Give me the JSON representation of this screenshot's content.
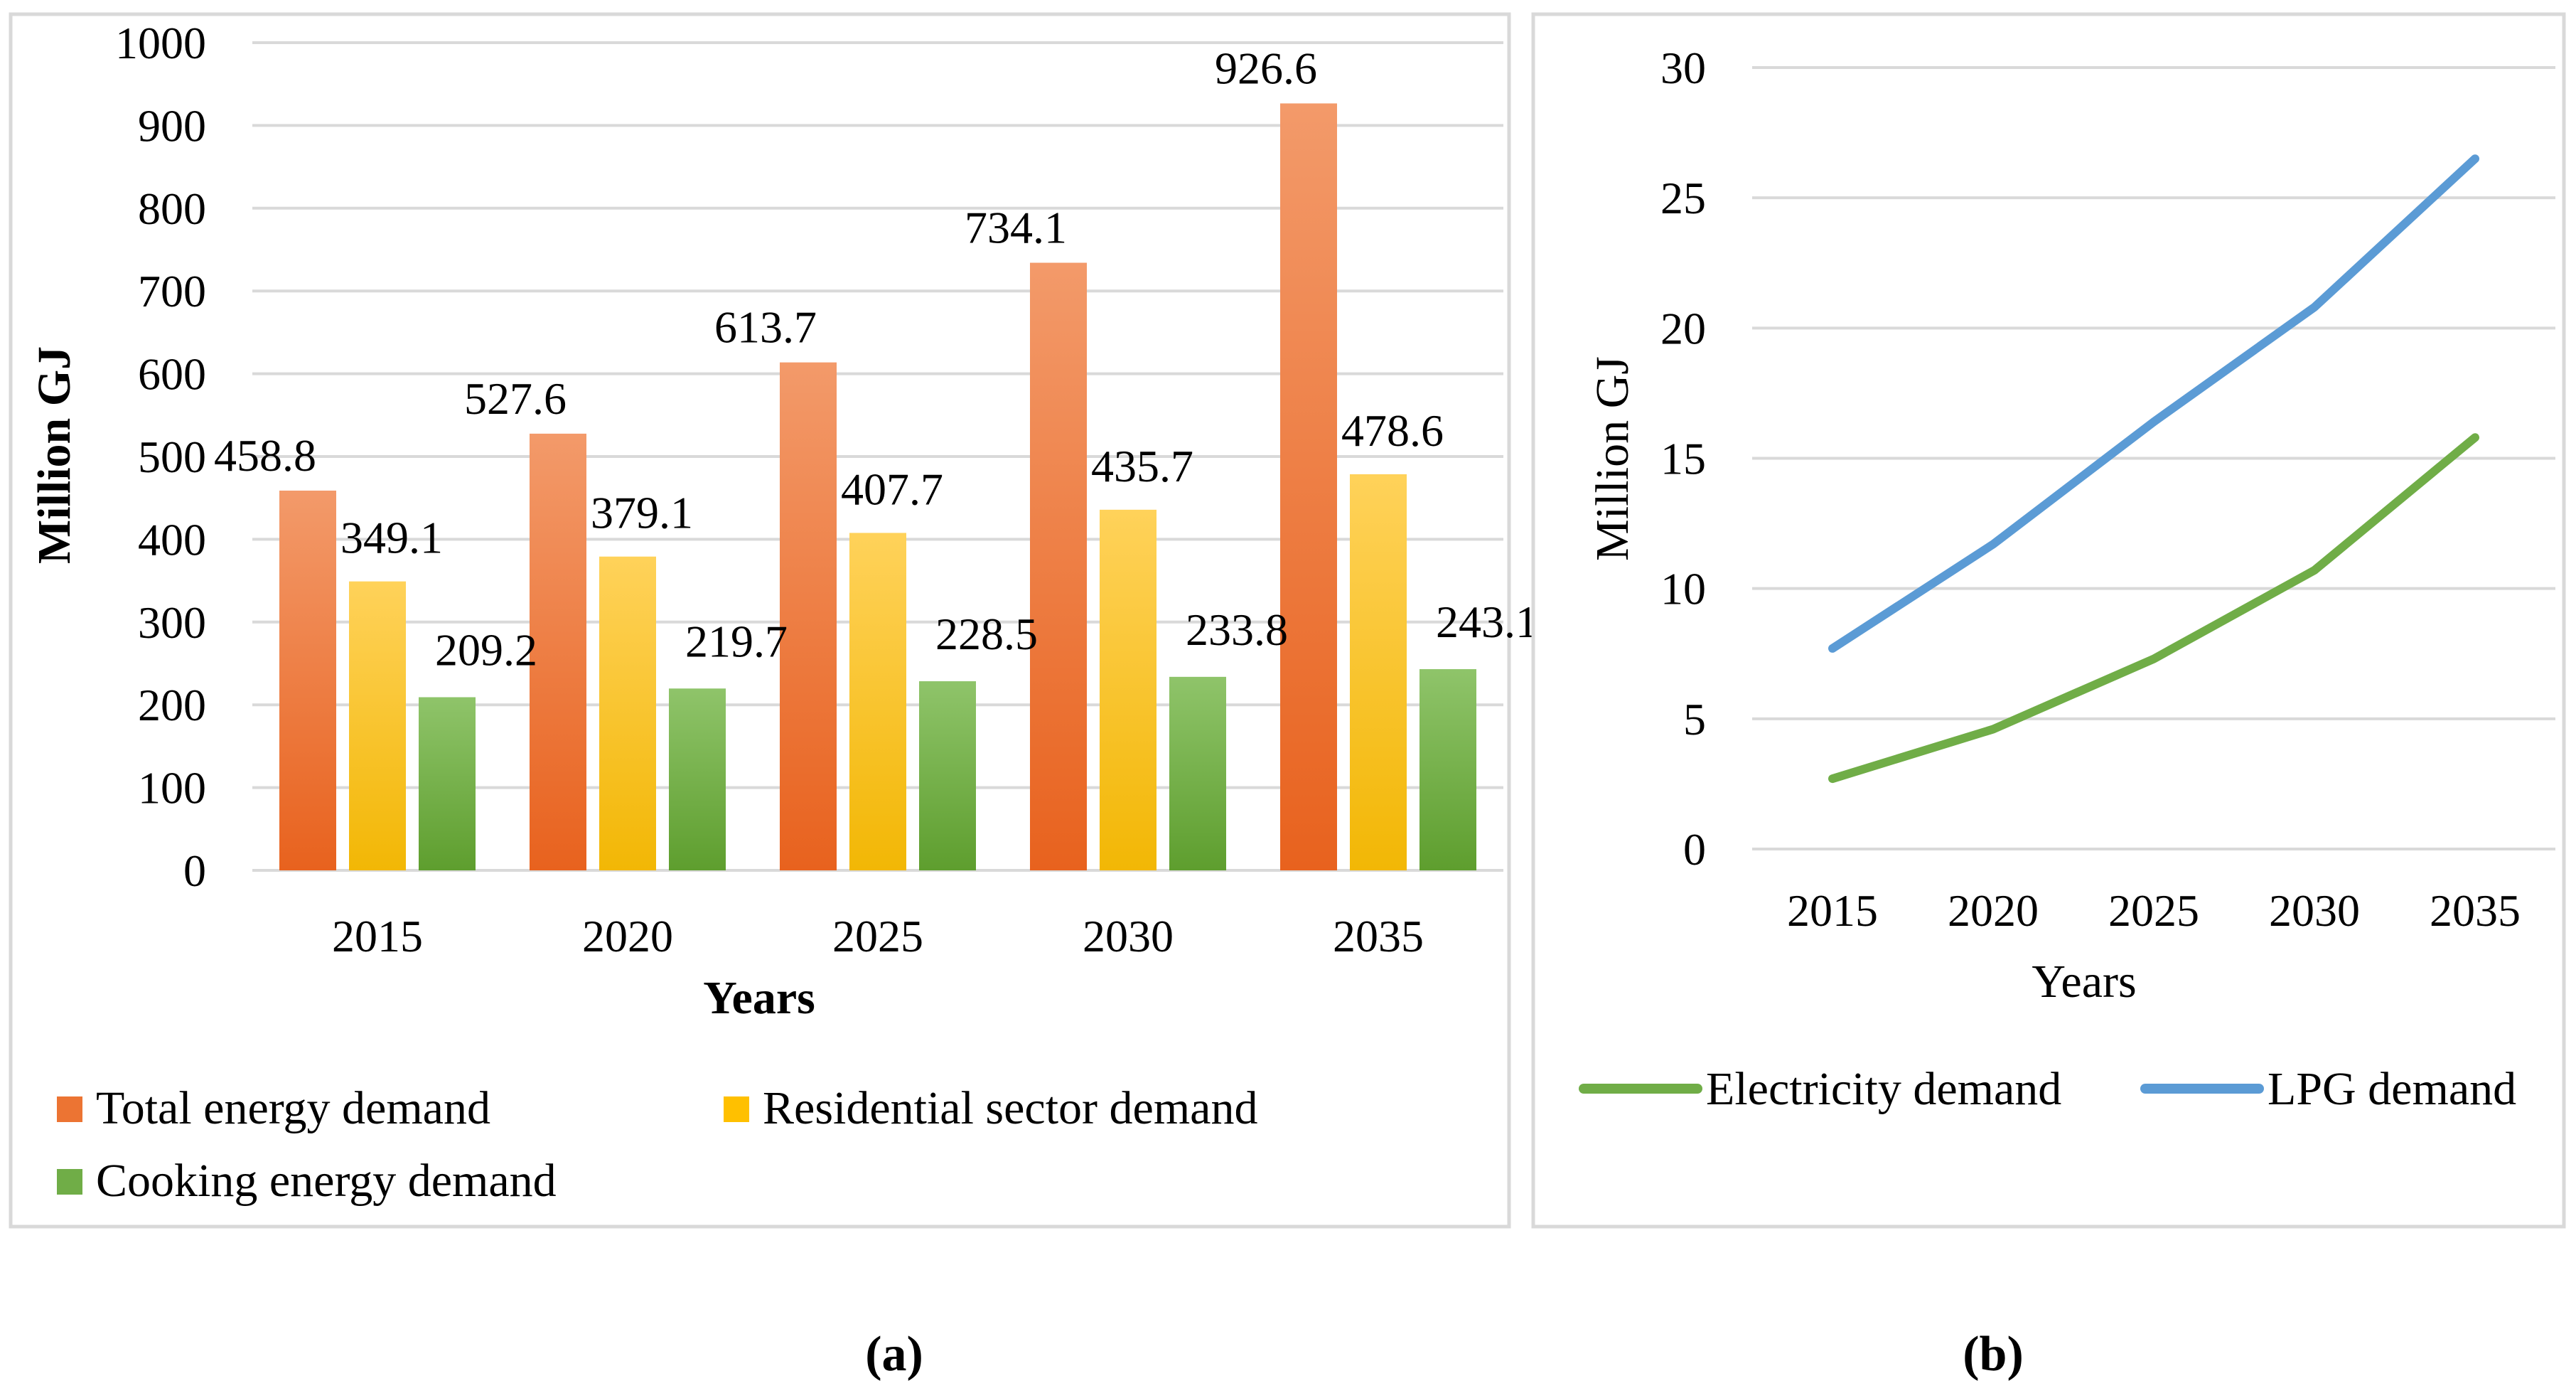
{
  "chart_data": [
    {
      "type": "bar",
      "title": "",
      "xlabel": "Years",
      "ylabel": "Million GJ",
      "ylim": [
        0,
        1000
      ],
      "yticks": [
        0,
        100,
        200,
        300,
        400,
        500,
        600,
        700,
        800,
        900,
        1000
      ],
      "categories": [
        "2015",
        "2020",
        "2025",
        "2030",
        "2035"
      ],
      "series": [
        {
          "name": "Total energy demand",
          "values": [
            458.8,
            527.6,
            613.7,
            734.1,
            926.6
          ],
          "color_top": "#F39A6A",
          "color_bottom": "#E8621E",
          "legend_color": "#EC7433",
          "labels": [
            "458.8",
            "527.6",
            "613.7",
            "734.1",
            "926.6"
          ]
        },
        {
          "name": "Residential sector demand",
          "values": [
            349.1,
            379.1,
            407.7,
            435.7,
            478.6
          ],
          "color_top": "#FFD25A",
          "color_bottom": "#F2B705",
          "legend_color": "#FFC000",
          "labels": [
            "349.1",
            "379.1",
            "407.7",
            "435.7",
            "478.6"
          ]
        },
        {
          "name": "Cooking energy demand",
          "values": [
            209.2,
            219.7,
            228.5,
            233.8,
            243.1
          ],
          "color_top": "#8FC46A",
          "color_bottom": "#5E9E2E",
          "legend_color": "#70AD47",
          "labels": [
            "209.2",
            "219.7",
            "228.5",
            "233.8",
            "243.1"
          ]
        }
      ],
      "grid": true,
      "legend_position": "bottom",
      "caption": "(a)"
    },
    {
      "type": "line",
      "title": "",
      "xlabel": "Years",
      "ylabel": "Million GJ",
      "ylim": [
        0,
        30
      ],
      "yticks": [
        0,
        5,
        10,
        15,
        20,
        25,
        30
      ],
      "categories": [
        "2015",
        "2020",
        "2025",
        "2030",
        "2035"
      ],
      "series": [
        {
          "name": "Electricity demand",
          "values": [
            2.7,
            4.6,
            7.3,
            10.7,
            15.8
          ],
          "color": "#70AD47"
        },
        {
          "name": "LPG demand",
          "values": [
            7.7,
            11.7,
            16.4,
            20.8,
            26.5
          ],
          "color": "#5B9BD5"
        }
      ],
      "grid": true,
      "legend_position": "bottom",
      "caption": "(b)"
    }
  ]
}
